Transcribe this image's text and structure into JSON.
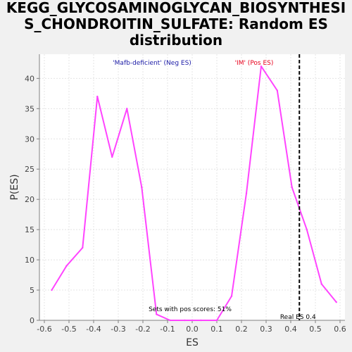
{
  "page": {
    "title_lines": [
      "KEGG_GLYCOSAMINOGLYCAN_BIOSYNTHESI",
      "S_CHONDROITIN_SULFATE: Random ES",
      "distribution"
    ]
  },
  "chart_data": {
    "type": "line",
    "title": "KEGG_GLYCOSAMINOGLYCAN_BIOSYNTHESIS_CHONDROITIN_SULFATE: Random ES distribution",
    "xlabel": "ES",
    "ylabel": "P(ES)",
    "xlim": [
      -0.62,
      0.62
    ],
    "ylim": [
      0,
      44
    ],
    "x_ticks": [
      -0.6,
      -0.5,
      -0.4,
      -0.3,
      -0.2,
      -0.1,
      0.0,
      0.1,
      0.2,
      0.3,
      0.4,
      0.5,
      0.6
    ],
    "x_tick_labels": [
      "-0.6",
      "-0.5",
      "-0.4",
      "-0.3",
      "-0.2",
      "-0.1",
      "0.0",
      "0.1",
      "0.2",
      "0.3",
      "0.4",
      "0.5",
      "0.6"
    ],
    "y_ticks": [
      0,
      5,
      10,
      15,
      20,
      25,
      30,
      35,
      40
    ],
    "y_tick_labels": [
      "0",
      "5",
      "10",
      "15",
      "20",
      "25",
      "30",
      "35",
      "40"
    ],
    "grid": true,
    "series": [
      {
        "color": "#ff44ff",
        "x": [
          -0.57,
          -0.51,
          -0.445,
          -0.385,
          -0.325,
          -0.265,
          -0.205,
          -0.145,
          -0.09,
          -0.03,
          0.035,
          0.1,
          0.16,
          0.22,
          0.28,
          0.345,
          0.405,
          0.465,
          0.525,
          0.585
        ],
        "y": [
          5,
          9,
          12,
          37,
          27,
          35,
          22,
          1,
          0,
          0,
          0,
          0,
          4,
          21,
          42,
          38,
          22,
          15,
          6,
          3
        ]
      }
    ],
    "real_es": {
      "value": 0.435,
      "label": "Real ES 0.4"
    },
    "annotations": {
      "neg_label": "'Mafb-deficient' (Neg ES)",
      "neg_color": "#1a1aa6",
      "pos_label": "'IM' (Pos ES)",
      "pos_color": "#e8001c",
      "pos_scores_text": "Sets with pos scores: 51%"
    }
  }
}
